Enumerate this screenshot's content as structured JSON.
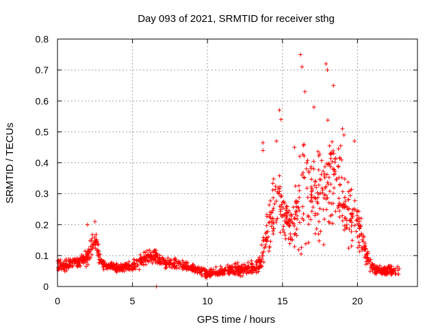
{
  "chart_data": {
    "type": "scatter",
    "title": "Day 093 of 2021, SRMTID for receiver sthg",
    "xlabel": "GPS time / hours",
    "ylabel": "SRMTID / TECUs",
    "xlim": [
      0,
      24
    ],
    "ylim": [
      0,
      0.8
    ],
    "x_ticks": [
      0,
      5,
      10,
      15,
      20
    ],
    "y_ticks": [
      0,
      0.1,
      0.2,
      0.3,
      0.4,
      0.5,
      0.6,
      0.7,
      0.8
    ],
    "x_tick_labels": [
      "0",
      "5",
      "10",
      "15",
      "20"
    ],
    "y_tick_labels": [
      "0",
      "0.1",
      "0.2",
      "0.3",
      "0.4",
      "0.5",
      "0.6",
      "0.7",
      "0.8"
    ],
    "grid": true,
    "marker": "+",
    "marker_color": "#ff0000",
    "series": [
      {
        "name": "SRMTID",
        "profile_x": [
          0,
          0.5,
          1,
          1.5,
          2,
          2.2,
          2.5,
          2.8,
          3,
          4,
          5,
          5.5,
          6,
          6.5,
          7,
          8,
          9,
          9.5,
          10,
          10.5,
          11,
          12,
          13,
          13.5,
          14,
          14.3,
          14.7,
          15,
          15.5,
          16,
          16.3,
          16.7,
          17,
          17.5,
          18,
          18.5,
          19,
          19.5,
          20,
          20.5,
          21,
          21.5,
          22,
          22.5,
          22.8
        ],
        "profile_center": [
          0.07,
          0.07,
          0.075,
          0.08,
          0.09,
          0.13,
          0.15,
          0.1,
          0.07,
          0.06,
          0.065,
          0.08,
          0.09,
          0.1,
          0.08,
          0.07,
          0.06,
          0.05,
          0.04,
          0.045,
          0.05,
          0.055,
          0.06,
          0.07,
          0.17,
          0.22,
          0.28,
          0.25,
          0.2,
          0.22,
          0.3,
          0.32,
          0.28,
          0.3,
          0.35,
          0.35,
          0.3,
          0.25,
          0.2,
          0.12,
          0.06,
          0.05,
          0.05,
          0.05,
          0.05
        ],
        "profile_spread": [
          0.03,
          0.03,
          0.03,
          0.03,
          0.04,
          0.05,
          0.05,
          0.04,
          0.02,
          0.02,
          0.025,
          0.03,
          0.035,
          0.03,
          0.03,
          0.025,
          0.02,
          0.02,
          0.02,
          0.02,
          0.02,
          0.025,
          0.03,
          0.04,
          0.12,
          0.15,
          0.15,
          0.12,
          0.1,
          0.18,
          0.25,
          0.25,
          0.2,
          0.22,
          0.25,
          0.2,
          0.18,
          0.15,
          0.1,
          0.06,
          0.03,
          0.025,
          0.025,
          0.03,
          0.03
        ],
        "point_count": 1400,
        "peaks": [
          {
            "x": 16.2,
            "y": 0.75
          },
          {
            "x": 16.3,
            "y": 0.71
          },
          {
            "x": 17.9,
            "y": 0.72
          },
          {
            "x": 18.0,
            "y": 0.7
          },
          {
            "x": 16.5,
            "y": 0.63
          },
          {
            "x": 18.4,
            "y": 0.65
          },
          {
            "x": 17.1,
            "y": 0.58
          },
          {
            "x": 14.8,
            "y": 0.57
          },
          {
            "x": 14.9,
            "y": 0.54
          },
          {
            "x": 14.6,
            "y": 0.47
          },
          {
            "x": 13.7,
            "y": 0.465
          },
          {
            "x": 13.7,
            "y": 0.44
          },
          {
            "x": 19.0,
            "y": 0.51
          },
          {
            "x": 19.1,
            "y": 0.49
          },
          {
            "x": 19.8,
            "y": 0.47
          },
          {
            "x": 15.8,
            "y": 0.45
          },
          {
            "x": 2.5,
            "y": 0.21
          },
          {
            "x": 2.0,
            "y": 0.2
          },
          {
            "x": 6.6,
            "y": 0.0
          }
        ]
      }
    ]
  }
}
